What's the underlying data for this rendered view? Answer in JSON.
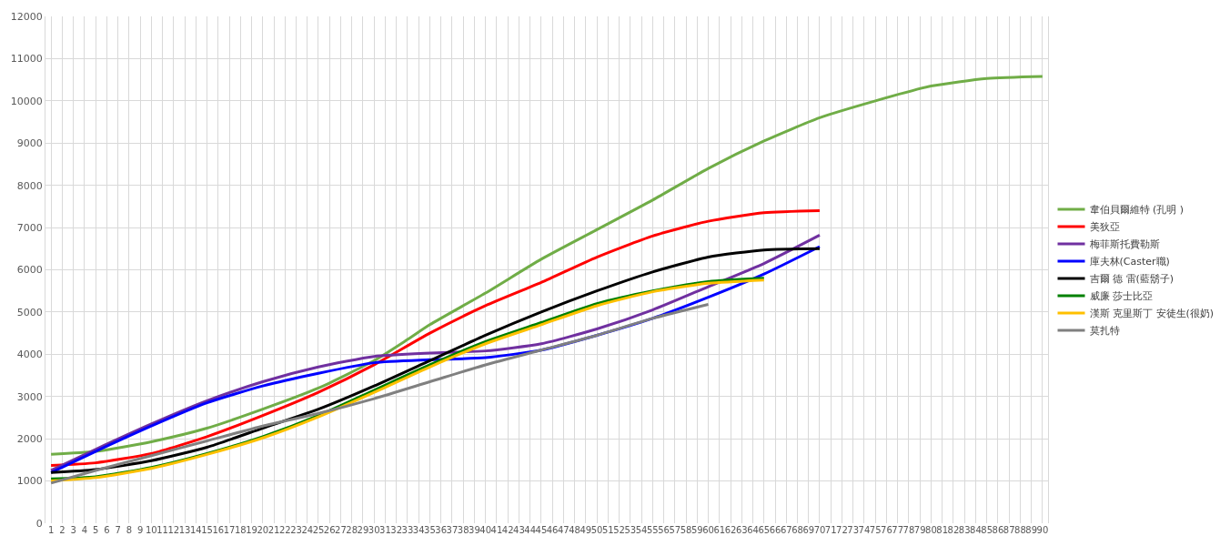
{
  "chart_data": {
    "type": "line",
    "xlim": [
      0.5,
      90.5
    ],
    "xticks": [
      1,
      2,
      3,
      4,
      5,
      6,
      7,
      8,
      9,
      10,
      11,
      12,
      13,
      14,
      15,
      16,
      17,
      18,
      19,
      20,
      21,
      22,
      23,
      24,
      25,
      26,
      27,
      28,
      29,
      30,
      31,
      32,
      33,
      34,
      35,
      36,
      37,
      38,
      39,
      40,
      41,
      42,
      43,
      44,
      45,
      46,
      47,
      48,
      49,
      50,
      51,
      52,
      53,
      54,
      55,
      56,
      57,
      58,
      59,
      60,
      61,
      62,
      63,
      64,
      65,
      66,
      67,
      68,
      69,
      70,
      71,
      72,
      73,
      74,
      75,
      76,
      77,
      78,
      79,
      80,
      81,
      82,
      83,
      84,
      85,
      86,
      87,
      88,
      89,
      90
    ],
    "ylim": [
      0,
      12000
    ],
    "yticks": [
      0,
      1000,
      2000,
      3000,
      4000,
      5000,
      6000,
      7000,
      8000,
      9000,
      10000,
      11000,
      12000
    ],
    "grid": true,
    "legend": "right",
    "marker": "none",
    "line_style": "solid",
    "series": [
      {
        "name": "韋伯貝爾維特 (孔明 )",
        "color": "#70ad47",
        "x": [
          1,
          5,
          10,
          15,
          20,
          25,
          30,
          33,
          35,
          40,
          45,
          50,
          55,
          60,
          65,
          70,
          75,
          80,
          85,
          90
        ],
        "values": [
          1630,
          1700,
          1930,
          2250,
          2700,
          3200,
          3850,
          4350,
          4700,
          5450,
          6250,
          6950,
          7650,
          8400,
          9050,
          9600,
          10000,
          10350,
          10530,
          10580
        ]
      },
      {
        "name": "美狄亞",
        "color": "#ff0000",
        "x": [
          1,
          5,
          10,
          15,
          20,
          25,
          30,
          35,
          40,
          45,
          50,
          55,
          60,
          65,
          70
        ],
        "values": [
          1370,
          1430,
          1650,
          2050,
          2550,
          3100,
          3750,
          4500,
          5150,
          5700,
          6300,
          6800,
          7150,
          7350,
          7400
        ]
      },
      {
        "name": "梅菲斯托費勒斯",
        "color": "#7030a0",
        "x": [
          1,
          5,
          10,
          15,
          20,
          25,
          30,
          35,
          40,
          45,
          50,
          55,
          60,
          65,
          70
        ],
        "values": [
          1250,
          1750,
          2350,
          2900,
          3350,
          3700,
          3950,
          4030,
          4080,
          4250,
          4600,
          5050,
          5600,
          6150,
          6820
        ]
      },
      {
        "name": "庫夫林(Caster職)",
        "color": "#0000ff",
        "x": [
          1,
          5,
          10,
          15,
          20,
          25,
          30,
          35,
          40,
          45,
          50,
          55,
          60,
          65,
          70
        ],
        "values": [
          1200,
          1700,
          2300,
          2850,
          3250,
          3550,
          3800,
          3870,
          3920,
          4100,
          4450,
          4850,
          5350,
          5900,
          6550
        ]
      },
      {
        "name": "吉爾 德 雷(藍鬍子)",
        "color": "#000000",
        "x": [
          1,
          5,
          10,
          15,
          20,
          25,
          30,
          35,
          40,
          45,
          50,
          55,
          60,
          65,
          70
        ],
        "values": [
          1200,
          1270,
          1480,
          1800,
          2250,
          2700,
          3250,
          3850,
          4450,
          5000,
          5500,
          5950,
          6300,
          6470,
          6500
        ]
      },
      {
        "name": "威廉 莎士比亞",
        "color": "#008000",
        "x": [
          1,
          5,
          10,
          15,
          20,
          25,
          30,
          35,
          40,
          45,
          50,
          55,
          60,
          65
        ],
        "values": [
          1050,
          1100,
          1320,
          1650,
          2050,
          2550,
          3150,
          3750,
          4300,
          4750,
          5200,
          5500,
          5720,
          5800
        ]
      },
      {
        "name": "漢斯 克里斯丁 安徒生(很奶)",
        "color": "#ffc000",
        "x": [
          1,
          5,
          10,
          15,
          20,
          25,
          30,
          35,
          40,
          45,
          50,
          55,
          60,
          65
        ],
        "values": [
          1000,
          1080,
          1300,
          1630,
          2020,
          2520,
          3100,
          3700,
          4250,
          4700,
          5150,
          5480,
          5680,
          5760
        ]
      },
      {
        "name": "莫扎特",
        "color": "#808080",
        "x": [
          1,
          5,
          10,
          15,
          20,
          25,
          30,
          35,
          40,
          45,
          50,
          55,
          60
        ],
        "values": [
          950,
          1250,
          1600,
          1950,
          2300,
          2600,
          2950,
          3350,
          3750,
          4100,
          4450,
          4850,
          5180
        ]
      }
    ]
  }
}
